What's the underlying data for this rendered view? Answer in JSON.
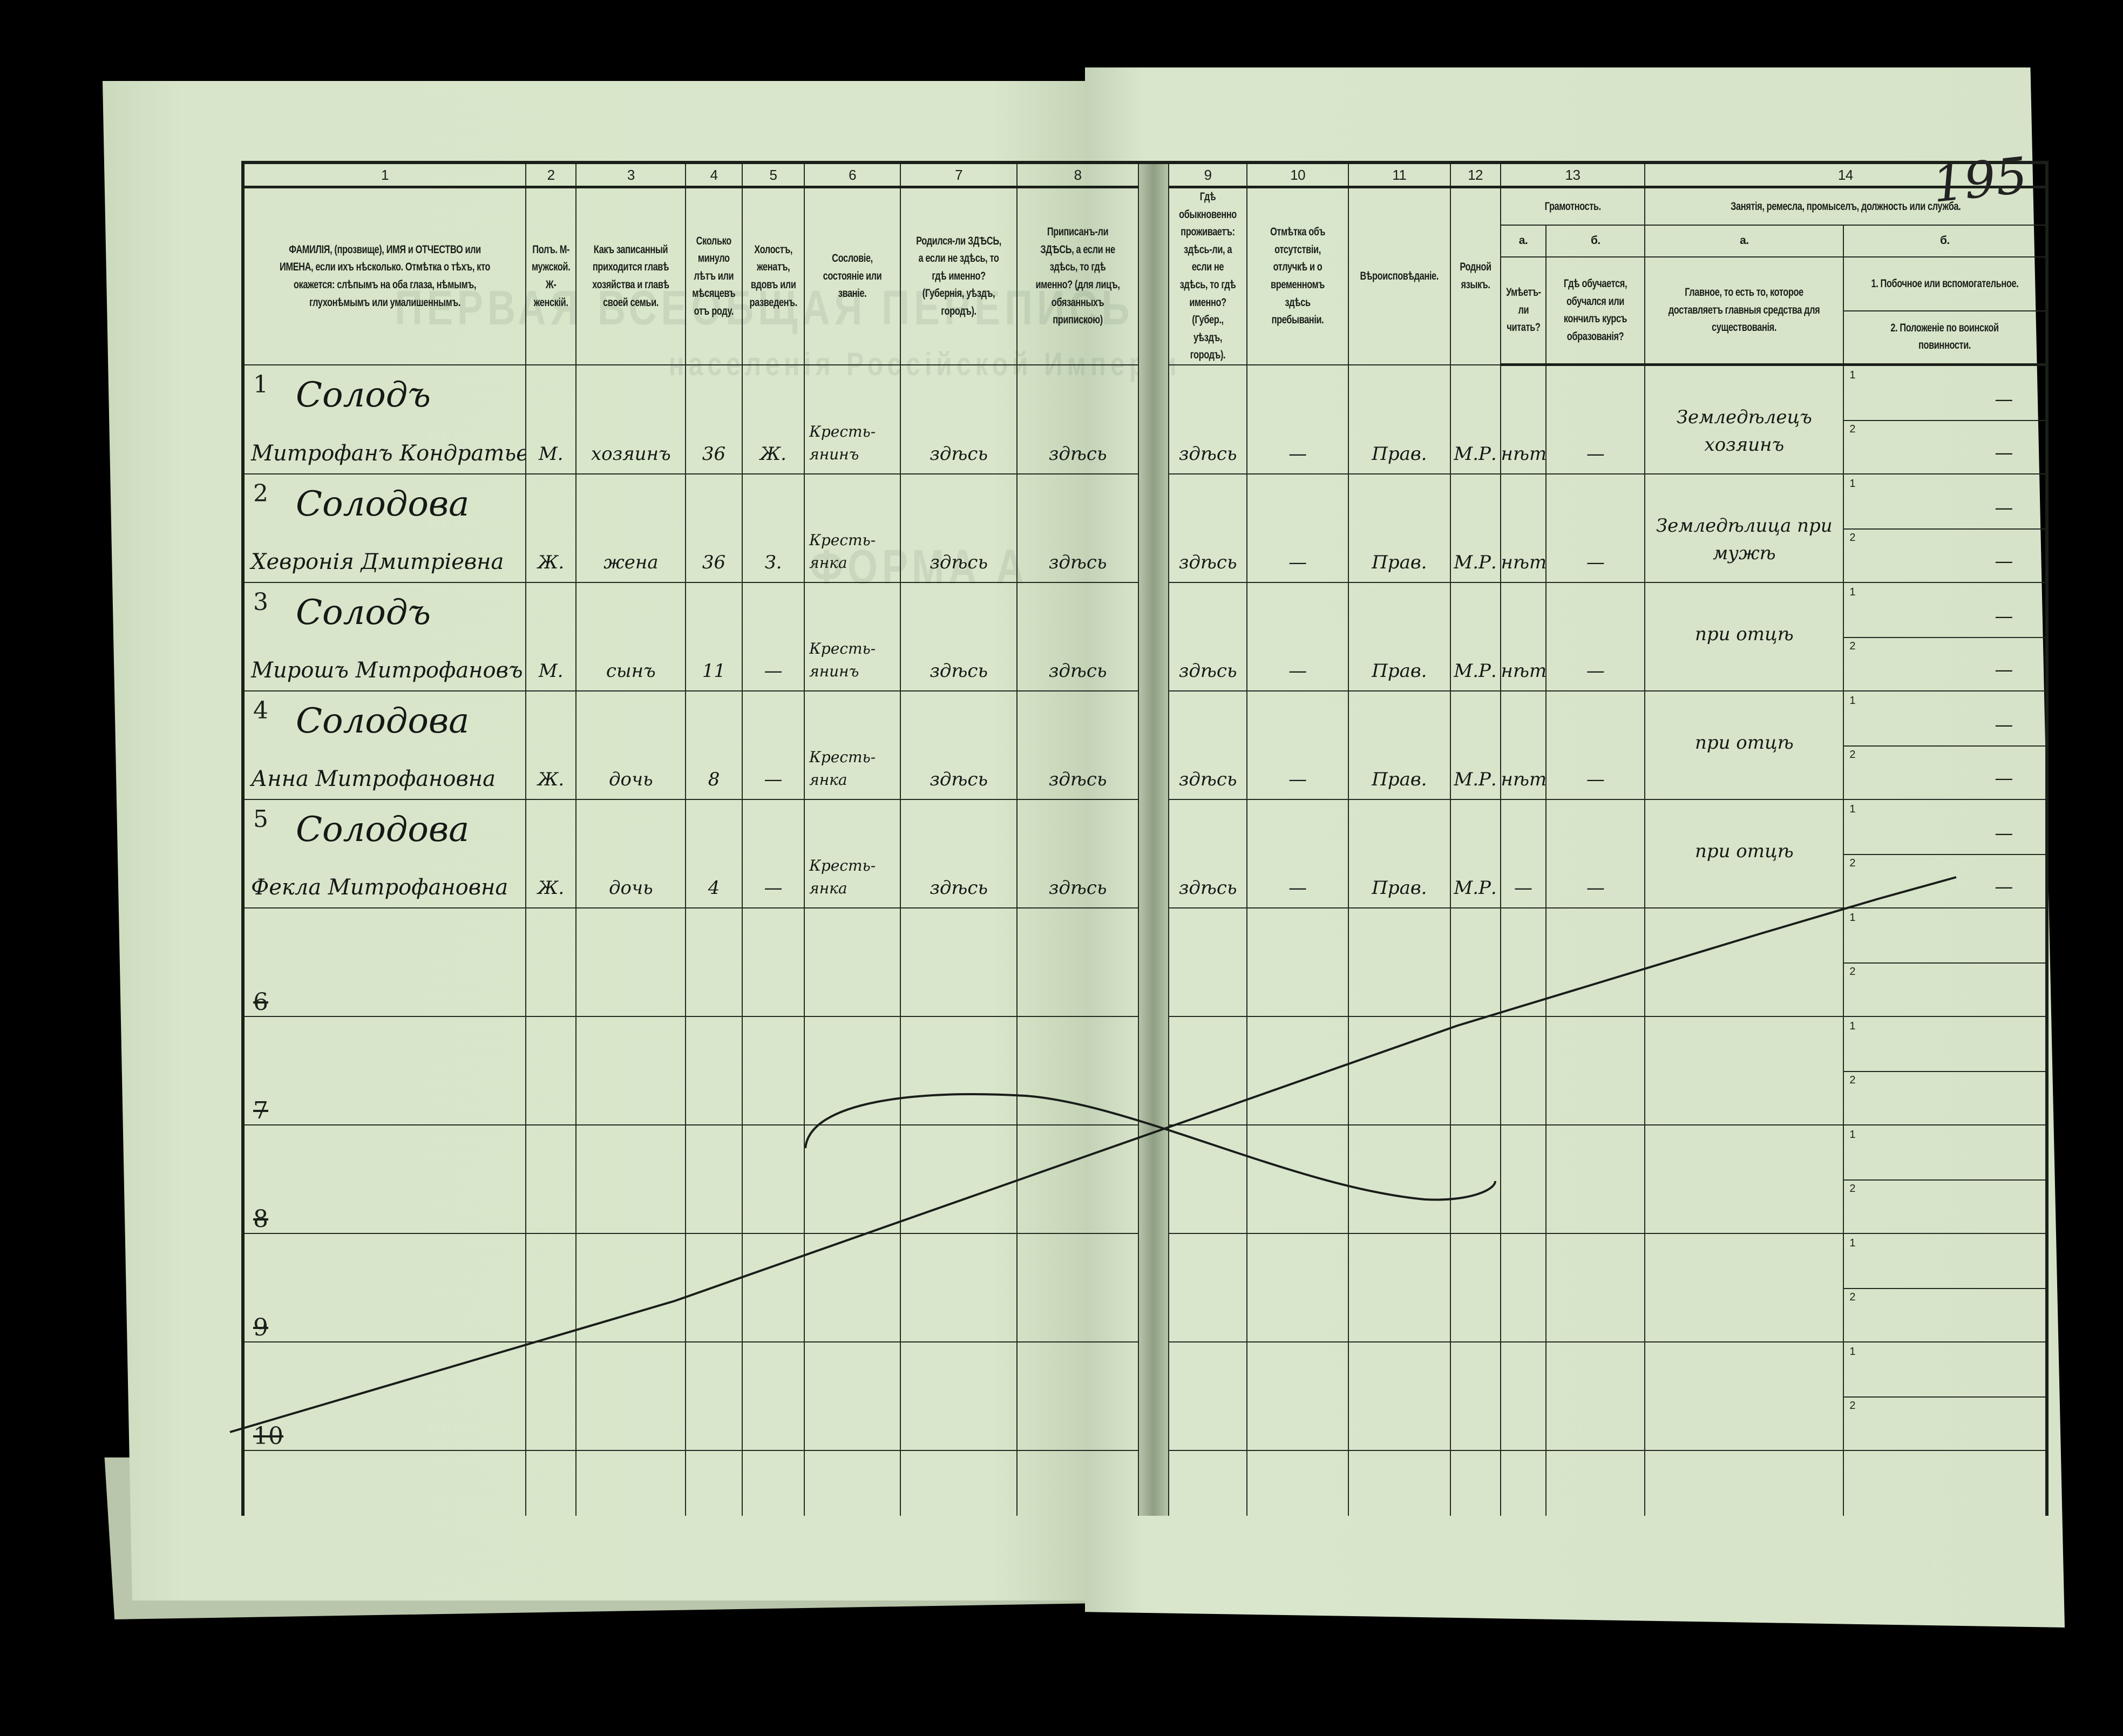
{
  "document": {
    "page_number": "195",
    "ghost_text": [
      "ПЕРВАЯ ВСЕОБЩАЯ ПЕРЕПИСЬ",
      "населенія Россійской Имперіи",
      "ФОРМА А"
    ]
  },
  "header": {
    "columns": [
      {
        "num": "1",
        "text": "ФАМИЛІЯ, (прозвище), ИМЯ и ОТЧЕСТВО или ИМЕНА, если ихъ нѣсколько. Отмѣтка о тѣхъ, кто окажется: слѣпымъ на оба глаза, нѣмымъ, глухонѣмымъ или умалишеннымъ."
      },
      {
        "num": "2",
        "text": "Полъ. М-мужской. Ж-женскій."
      },
      {
        "num": "3",
        "text": "Какъ записанный приходится главѣ хозяйства и главѣ своей семьи."
      },
      {
        "num": "4",
        "text": "Сколько минуло лѣтъ или мѣсяцевъ отъ роду."
      },
      {
        "num": "5",
        "text": "Холостъ, женатъ, вдовъ или разведенъ."
      },
      {
        "num": "6",
        "text": "Сословіе, состояніе или званіе."
      },
      {
        "num": "7",
        "text": "Родился-ли ЗДѢСЬ, а если не здѣсь, то гдѣ именно? (Губернія, уѣздъ, городъ)."
      },
      {
        "num": "8",
        "text": "Приписанъ-ли ЗДѢСЬ, а если не здѣсь, то гдѣ именно? (для лицъ, обязанныхъ припискою)"
      },
      {
        "num": "9",
        "text": "Гдѣ обыкновенно проживаетъ: здѣсь-ли, а если не здѣсь, то гдѣ именно? (Губер., уѣздъ, городъ)."
      },
      {
        "num": "10",
        "text": "Отмѣтка объ отсутствіи, отлучкѣ и о временномъ здѣсь пребываніи."
      },
      {
        "num": "11",
        "text": "Вѣроисповѣданіе."
      },
      {
        "num": "12",
        "text": "Родной языкъ."
      },
      {
        "num": "13",
        "text": "Грамотность.",
        "a_label": "а.",
        "b_label": "б.",
        "a_text": "Умѣетъ-ли читать?",
        "b_text": "Гдѣ обучается, обучался или кончилъ курсъ образованія?"
      },
      {
        "num": "14",
        "text": "Занятія, ремесла, промыселъ, должность или служба.",
        "a_label": "а.",
        "b_label": "б.",
        "a_text": "Главное, то есть то, которое доставляетъ главныя средства для существованія.",
        "b1_text": "1. Побочное или вспомогательное.",
        "b2_text": "2. Положеніе по воинской повинности."
      }
    ],
    "sub_labels": [
      "1",
      "2"
    ]
  },
  "rows": [
    {
      "num": "1",
      "surname": "Солодъ",
      "name": "Митрофанъ Кондратьевъ",
      "sex": "М.",
      "relation": "хозяинъ",
      "age": "36",
      "marital": "Ж.",
      "estate": "Кресть- янинъ",
      "born": "здѣсь",
      "registered": "здѣсь",
      "resides": "здѣсь",
      "absence": "—",
      "religion": "Прав.",
      "language": "М.Р.",
      "can_read": "нѣтъ",
      "education": "—",
      "occupation_main": "Земледѣлецъ хозяинъ",
      "occupation_side": "—",
      "military": "—"
    },
    {
      "num": "2",
      "surname": "Солодова",
      "name": "Хевронія Дмитріевна",
      "sex": "Ж.",
      "relation": "жена",
      "age": "36",
      "marital": "З.",
      "estate": "Кресть- янка",
      "born": "здѣсь",
      "registered": "здѣсь",
      "resides": "здѣсь",
      "absence": "—",
      "religion": "Прав.",
      "language": "М.Р.",
      "can_read": "нѣтъ",
      "education": "—",
      "occupation_main": "Земледѣлица при мужѣ",
      "occupation_side": "—",
      "military": "—"
    },
    {
      "num": "3",
      "surname": "Солодъ",
      "name": "Мирошъ Митрофановъ",
      "sex": "М.",
      "relation": "сынъ",
      "age": "11",
      "marital": "—",
      "estate": "Кресть- янинъ",
      "born": "здѣсь",
      "registered": "здѣсь",
      "resides": "здѣсь",
      "absence": "—",
      "religion": "Прав.",
      "language": "М.Р.",
      "can_read": "нѣтъ",
      "education": "—",
      "occupation_main": "при отцѣ",
      "occupation_side": "—",
      "military": "—"
    },
    {
      "num": "4",
      "surname": "Солодова",
      "name": "Анна Митрофановна",
      "sex": "Ж.",
      "relation": "дочь",
      "age": "8",
      "marital": "—",
      "estate": "Кресть- янка",
      "born": "здѣсь",
      "registered": "здѣсь",
      "resides": "здѣсь",
      "absence": "—",
      "religion": "Прав.",
      "language": "М.Р.",
      "can_read": "нѣтъ",
      "education": "—",
      "occupation_main": "при отцѣ",
      "occupation_side": "—",
      "military": "—"
    },
    {
      "num": "5",
      "surname": "Солодова",
      "name": "Фекла Митрофановна",
      "sex": "Ж.",
      "relation": "дочь",
      "age": "4",
      "marital": "—",
      "estate": "Кресть- янка",
      "born": "здѣсь",
      "registered": "здѣсь",
      "resides": "здѣсь",
      "absence": "—",
      "religion": "Прав.",
      "language": "М.Р.",
      "can_read": "—",
      "education": "—",
      "occupation_main": "при отцѣ",
      "occupation_side": "—",
      "military": "—"
    },
    {
      "num": "6",
      "struck": true
    },
    {
      "num": "7",
      "struck": true
    },
    {
      "num": "8",
      "struck": true
    },
    {
      "num": "9",
      "struck": true
    },
    {
      "num": "10",
      "struck": true
    }
  ],
  "colors": {
    "paper": "#d7e4c9",
    "ink": "#151815",
    "background": "#000000"
  }
}
